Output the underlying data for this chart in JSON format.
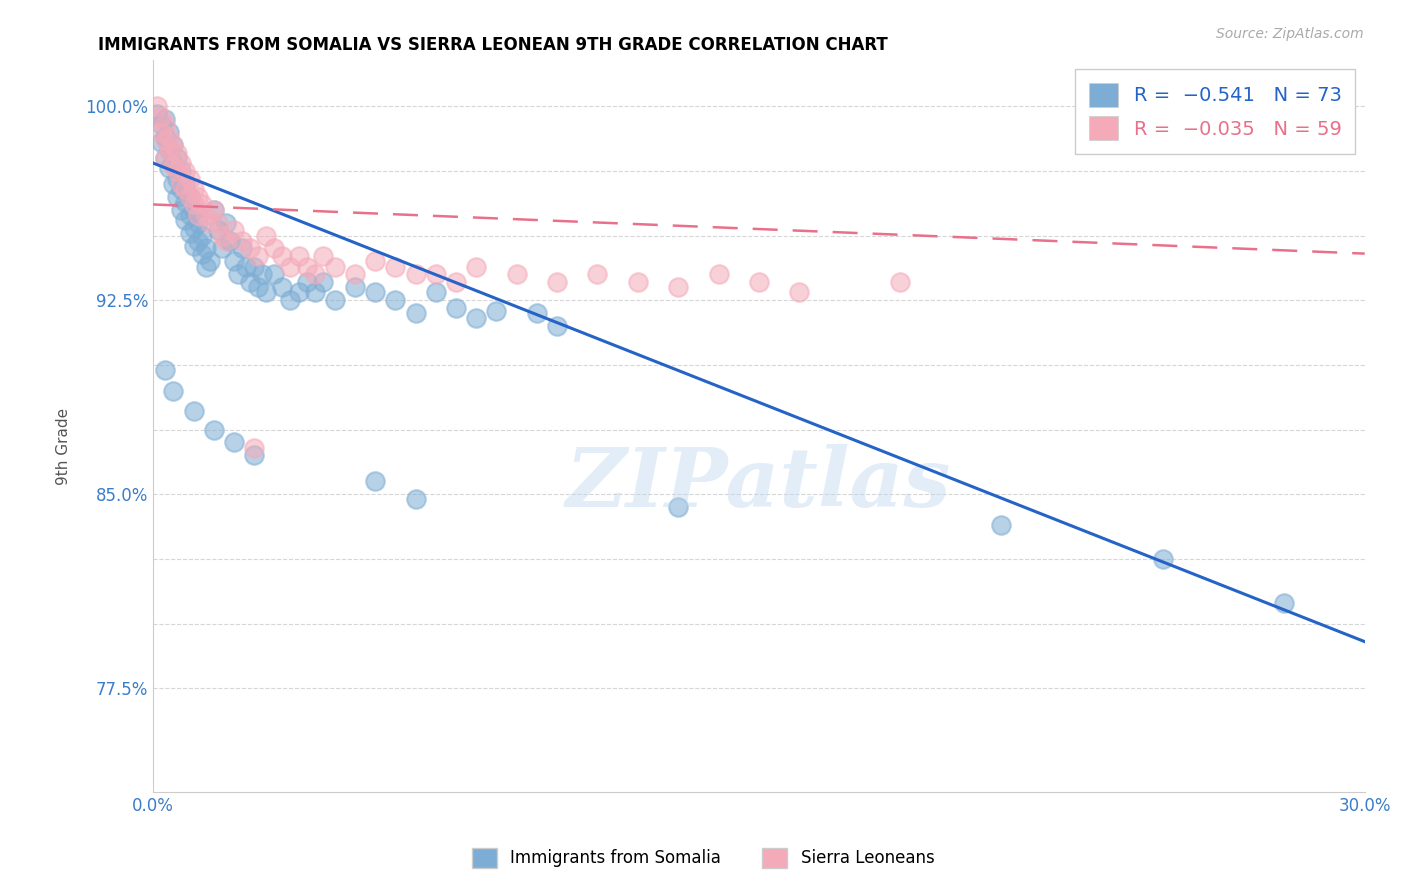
{
  "title": "IMMIGRANTS FROM SOMALIA VS SIERRA LEONEAN 9TH GRADE CORRELATION CHART",
  "source": "Source: ZipAtlas.com",
  "ylabel": "9th Grade",
  "somalia_color": "#7dadd4",
  "sierra_color": "#f4aab9",
  "trendline_somalia_color": "#2563c7",
  "trendline_sierra_color": "#e8708a",
  "watermark": "ZIPatlas",
  "xlim": [
    0.0,
    0.3
  ],
  "ylim": [
    0.735,
    1.018
  ],
  "somalia_points": [
    [
      0.001,
      0.997
    ],
    [
      0.002,
      0.993
    ],
    [
      0.002,
      0.986
    ],
    [
      0.003,
      0.995
    ],
    [
      0.003,
      0.988
    ],
    [
      0.003,
      0.98
    ],
    [
      0.004,
      0.99
    ],
    [
      0.004,
      0.983
    ],
    [
      0.004,
      0.976
    ],
    [
      0.005,
      0.985
    ],
    [
      0.005,
      0.978
    ],
    [
      0.005,
      0.97
    ],
    [
      0.006,
      0.98
    ],
    [
      0.006,
      0.972
    ],
    [
      0.006,
      0.965
    ],
    [
      0.007,
      0.975
    ],
    [
      0.007,
      0.968
    ],
    [
      0.007,
      0.96
    ],
    [
      0.008,
      0.97
    ],
    [
      0.008,
      0.963
    ],
    [
      0.008,
      0.956
    ],
    [
      0.009,
      0.965
    ],
    [
      0.009,
      0.958
    ],
    [
      0.009,
      0.951
    ],
    [
      0.01,
      0.96
    ],
    [
      0.01,
      0.953
    ],
    [
      0.01,
      0.946
    ],
    [
      0.011,
      0.955
    ],
    [
      0.011,
      0.948
    ],
    [
      0.012,
      0.95
    ],
    [
      0.012,
      0.943
    ],
    [
      0.013,
      0.945
    ],
    [
      0.013,
      0.938
    ],
    [
      0.014,
      0.94
    ],
    [
      0.015,
      0.96
    ],
    [
      0.016,
      0.952
    ],
    [
      0.017,
      0.945
    ],
    [
      0.018,
      0.955
    ],
    [
      0.019,
      0.948
    ],
    [
      0.02,
      0.94
    ],
    [
      0.021,
      0.935
    ],
    [
      0.022,
      0.945
    ],
    [
      0.023,
      0.938
    ],
    [
      0.024,
      0.932
    ],
    [
      0.025,
      0.938
    ],
    [
      0.026,
      0.93
    ],
    [
      0.027,
      0.935
    ],
    [
      0.028,
      0.928
    ],
    [
      0.03,
      0.935
    ],
    [
      0.032,
      0.93
    ],
    [
      0.034,
      0.925
    ],
    [
      0.036,
      0.928
    ],
    [
      0.038,
      0.932
    ],
    [
      0.04,
      0.928
    ],
    [
      0.042,
      0.932
    ],
    [
      0.045,
      0.925
    ],
    [
      0.05,
      0.93
    ],
    [
      0.055,
      0.928
    ],
    [
      0.06,
      0.925
    ],
    [
      0.065,
      0.92
    ],
    [
      0.07,
      0.928
    ],
    [
      0.075,
      0.922
    ],
    [
      0.08,
      0.918
    ],
    [
      0.085,
      0.921
    ],
    [
      0.095,
      0.92
    ],
    [
      0.1,
      0.915
    ],
    [
      0.003,
      0.898
    ],
    [
      0.005,
      0.89
    ],
    [
      0.01,
      0.882
    ],
    [
      0.015,
      0.875
    ],
    [
      0.02,
      0.87
    ],
    [
      0.025,
      0.865
    ],
    [
      0.055,
      0.855
    ],
    [
      0.065,
      0.848
    ],
    [
      0.13,
      0.845
    ],
    [
      0.21,
      0.838
    ],
    [
      0.25,
      0.825
    ],
    [
      0.28,
      0.808
    ]
  ],
  "sierra_points": [
    [
      0.001,
      1.0
    ],
    [
      0.002,
      0.996
    ],
    [
      0.002,
      0.99
    ],
    [
      0.003,
      0.993
    ],
    [
      0.003,
      0.987
    ],
    [
      0.003,
      0.98
    ],
    [
      0.004,
      0.988
    ],
    [
      0.004,
      0.983
    ],
    [
      0.005,
      0.985
    ],
    [
      0.005,
      0.977
    ],
    [
      0.006,
      0.982
    ],
    [
      0.006,
      0.975
    ],
    [
      0.007,
      0.978
    ],
    [
      0.007,
      0.97
    ],
    [
      0.008,
      0.975
    ],
    [
      0.008,
      0.968
    ],
    [
      0.009,
      0.972
    ],
    [
      0.009,
      0.965
    ],
    [
      0.01,
      0.968
    ],
    [
      0.01,
      0.962
    ],
    [
      0.011,
      0.965
    ],
    [
      0.011,
      0.958
    ],
    [
      0.012,
      0.962
    ],
    [
      0.013,
      0.958
    ],
    [
      0.014,
      0.955
    ],
    [
      0.015,
      0.96
    ],
    [
      0.016,
      0.955
    ],
    [
      0.017,
      0.95
    ],
    [
      0.018,
      0.948
    ],
    [
      0.02,
      0.952
    ],
    [
      0.022,
      0.948
    ],
    [
      0.024,
      0.945
    ],
    [
      0.026,
      0.942
    ],
    [
      0.028,
      0.95
    ],
    [
      0.03,
      0.945
    ],
    [
      0.032,
      0.942
    ],
    [
      0.034,
      0.938
    ],
    [
      0.036,
      0.942
    ],
    [
      0.038,
      0.938
    ],
    [
      0.04,
      0.935
    ],
    [
      0.042,
      0.942
    ],
    [
      0.045,
      0.938
    ],
    [
      0.05,
      0.935
    ],
    [
      0.055,
      0.94
    ],
    [
      0.06,
      0.938
    ],
    [
      0.065,
      0.935
    ],
    [
      0.07,
      0.935
    ],
    [
      0.075,
      0.932
    ],
    [
      0.08,
      0.938
    ],
    [
      0.09,
      0.935
    ],
    [
      0.1,
      0.932
    ],
    [
      0.11,
      0.935
    ],
    [
      0.12,
      0.932
    ],
    [
      0.13,
      0.93
    ],
    [
      0.14,
      0.935
    ],
    [
      0.15,
      0.932
    ],
    [
      0.16,
      0.928
    ],
    [
      0.185,
      0.932
    ],
    [
      0.025,
      0.868
    ]
  ],
  "somalia_trend_x": [
    0.0,
    0.3
  ],
  "somalia_trend_y": [
    0.978,
    0.793
  ],
  "sierra_trend_x": [
    0.0,
    0.3
  ],
  "sierra_trend_y": [
    0.962,
    0.943
  ],
  "ytick_positions": [
    0.775,
    0.8,
    0.825,
    0.85,
    0.875,
    0.9,
    0.925,
    0.95,
    0.975,
    1.0
  ],
  "ytick_labels": [
    "77.5%",
    "",
    "",
    "85.0%",
    "",
    "",
    "92.5%",
    "",
    "",
    "100.0%"
  ],
  "xtick_positions": [
    0.0,
    0.05,
    0.1,
    0.15,
    0.2,
    0.25,
    0.3
  ],
  "xtick_labels": [
    "0.0%",
    "",
    "",
    "",
    "",
    "",
    "30.0%"
  ]
}
